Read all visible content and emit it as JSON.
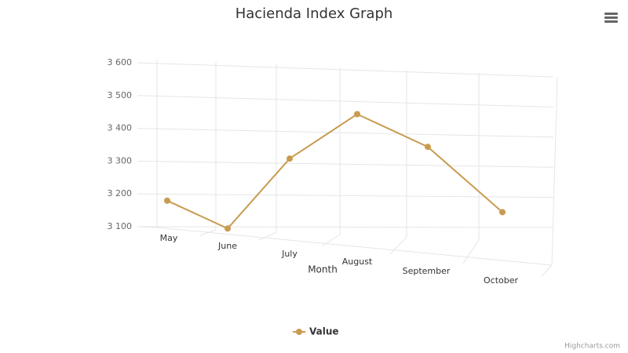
{
  "chart_data": {
    "type": "line",
    "title": "Hacienda Index Graph",
    "x_label": "Month",
    "categories": [
      "May",
      "June",
      "July",
      "August",
      "September",
      "October"
    ],
    "series": [
      {
        "name": "Value",
        "color": "#c89b4f",
        "values": [
          3180,
          3095,
          3315,
          3460,
          3360,
          3150
        ]
      }
    ],
    "ylim": [
      3100,
      3600
    ],
    "yticks": [
      {
        "value": 3100,
        "label": "3 100"
      },
      {
        "value": 3200,
        "label": "3 200"
      },
      {
        "value": 3300,
        "label": "3 300"
      },
      {
        "value": 3400,
        "label": "3 400"
      },
      {
        "value": 3500,
        "label": "3 500"
      },
      {
        "value": 3600,
        "label": "3 600"
      }
    ],
    "grid": true,
    "legend": "bottom",
    "credits": "Highcharts.com"
  }
}
